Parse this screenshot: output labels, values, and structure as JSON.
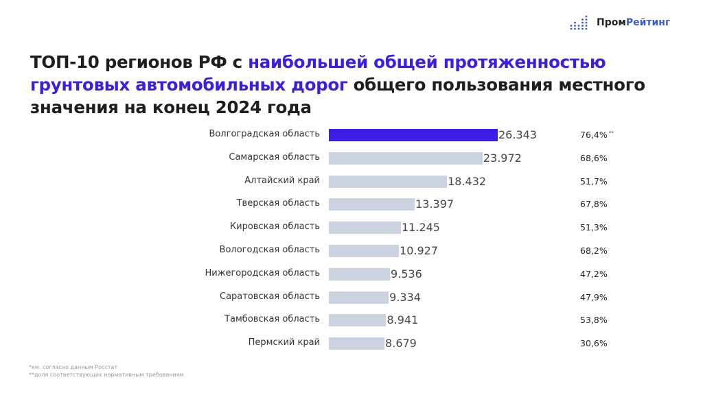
{
  "logo": {
    "text_a": "Пром",
    "text_b": "Рейтинг"
  },
  "title": {
    "part1": "ТОП-10 регионов РФ с ",
    "highlight": "наибольшей общей протяженностью грунтовых автомобильных дорог",
    "part2": " общего пользования местного значения на конец 2024 года"
  },
  "chart_data": {
    "type": "bar",
    "orientation": "horizontal",
    "categories": [
      "Волгоградская область",
      "Самарская область",
      "Алтайский край",
      "Тверская область",
      "Кировская область",
      "Вологодская область",
      "Нижегородская область",
      "Саратовская область",
      "Тамбовская область",
      "Пермский край"
    ],
    "values": [
      26.343,
      23.972,
      18.432,
      13.397,
      11.245,
      10.927,
      9.536,
      9.334,
      8.941,
      8.679
    ],
    "value_labels": [
      "26.343",
      "23.972",
      "18.432",
      "13.397",
      "11.245",
      "10.927",
      "9.536",
      "9.334",
      "8.941",
      "8.679"
    ],
    "share_labels": [
      "76,4%",
      "68,6%",
      "51,7%",
      "67,8%",
      "51,3%",
      "68,2%",
      "47,2%",
      "47,9%",
      "53,8%",
      "30,6%"
    ],
    "share_marker": "**",
    "colors": {
      "highlight": "#3b1ee6",
      "default": "#ccd3e0"
    }
  },
  "footnotes": [
    "*км. согласно данным Росстат",
    "**доля соответствующих нормативным требованиям"
  ]
}
